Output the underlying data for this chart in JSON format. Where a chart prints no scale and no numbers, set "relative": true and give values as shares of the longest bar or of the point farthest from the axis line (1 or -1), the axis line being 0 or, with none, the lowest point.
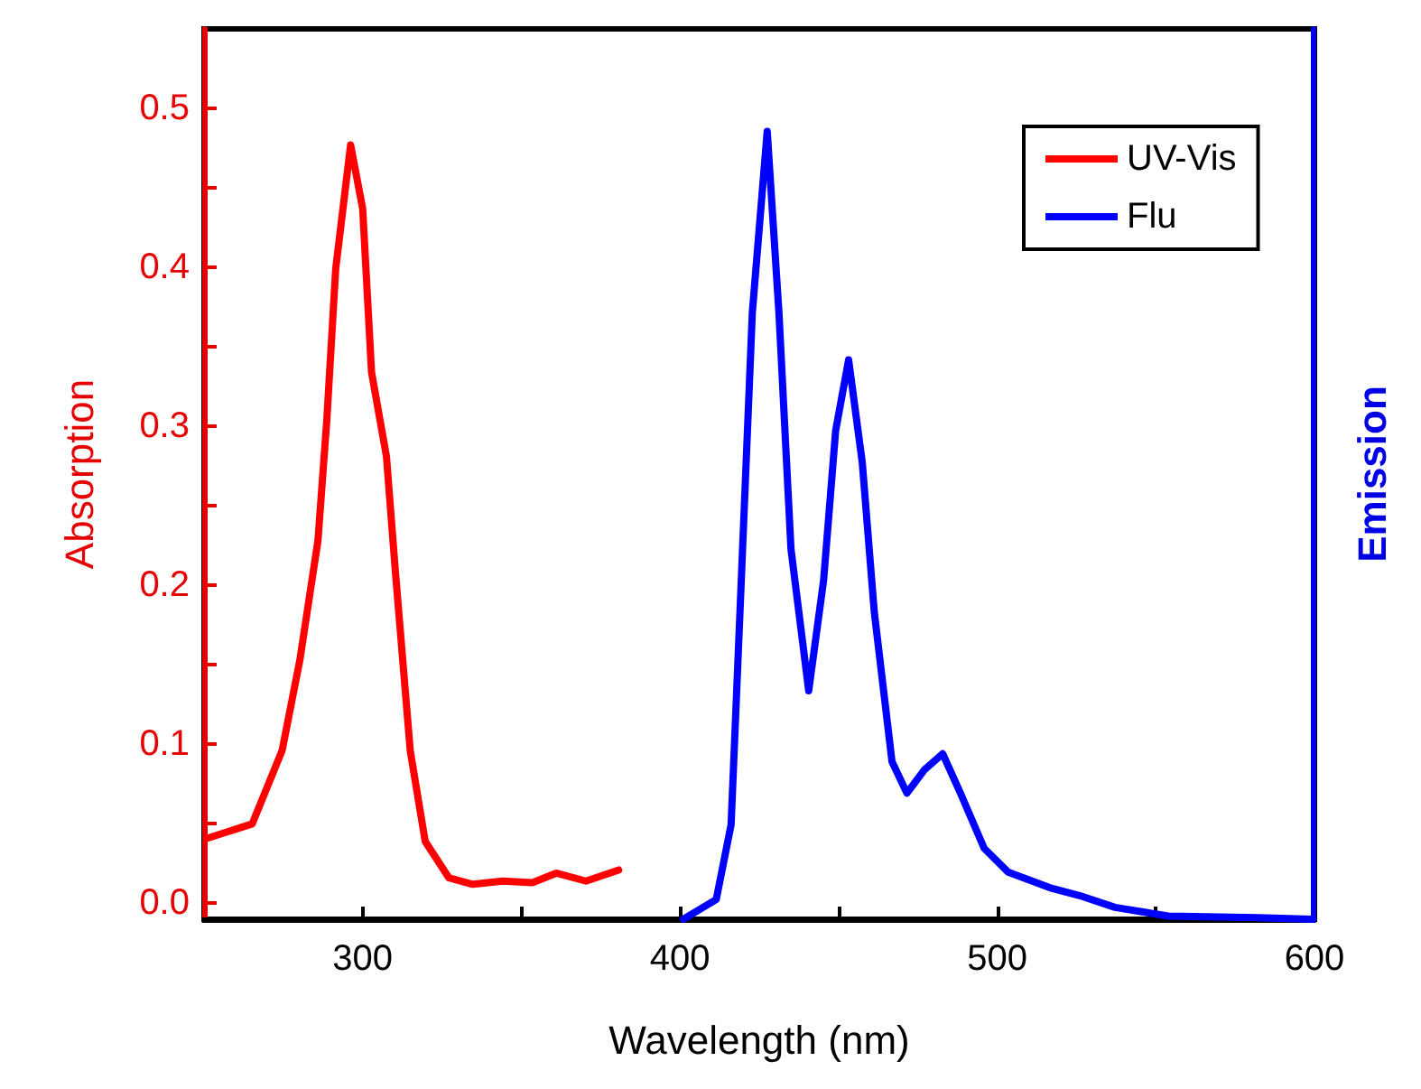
{
  "chart_data": [
    {
      "type": "line",
      "xlabel": "Wavelength (nm)",
      "ylabel": "Absorption",
      "xlim": [
        250,
        600
      ],
      "xticks": [
        300,
        {
          "value": 350,
          "label": null
        },
        400,
        {
          "value": 450,
          "label": null
        },
        500,
        {
          "value": 550,
          "label": null
        },
        600
      ],
      "ylim": [
        -0.01,
        0.55
      ],
      "yticks": [
        "0.0",
        {
          "value": 0.05,
          "label": null
        },
        0.1,
        {
          "value": 0.15,
          "label": null
        },
        0.2,
        {
          "value": 0.25,
          "label": null
        },
        0.3,
        {
          "value": 0.35,
          "label": null
        },
        0.4,
        {
          "value": 0.45,
          "label": null
        },
        0.5
      ],
      "grid": false,
      "legend": "top right",
      "marker": "none",
      "line_style": "solid",
      "series": [
        {
          "name": "UV-Vis",
          "color": "#ff0000",
          "x": [
            251.1,
            265.2,
            274.6,
            280.2,
            285.9,
            288.7,
            291.5,
            296.2,
            300.0,
            302.8,
            307.5,
            310.3,
            315.0,
            319.7,
            327.2,
            334.7,
            344.1,
            353.5,
            361.0,
            370.4,
            380.7
          ],
          "values": [
            0.041,
            0.05,
            0.096,
            0.153,
            0.228,
            0.304,
            0.399,
            0.477,
            0.437,
            0.334,
            0.281,
            0.209,
            0.096,
            0.039,
            0.016,
            0.012,
            0.014,
            0.013,
            0.019,
            0.014,
            0.021
          ]
        }
      ]
    },
    {
      "type": "line",
      "relative": true,
      "y2label": "Emission",
      "xlim": [
        250,
        600
      ],
      "grid": false,
      "legend": "top right",
      "marker": "none",
      "line_style": "solid",
      "series": [
        {
          "name": "Flu",
          "color": "#0000ff",
          "axis": "y2",
          "x": [
            401.3,
            411.7,
            416.4,
            419.2,
            423.1,
            427.8,
            431.5,
            435.3,
            440.9,
            445.6,
            449.4,
            453.5,
            457.8,
            461.6,
            467.2,
            471.9,
            477.5,
            483.2,
            488.8,
            496.3,
            503.8,
            517.0,
            526.4,
            537.6,
            554.4,
            582.6,
            600.0
          ],
          "values": [
            0.0,
            0.025,
            0.12,
            0.39,
            0.77,
            1.0,
            0.77,
            0.47,
            0.29,
            0.43,
            0.62,
            0.71,
            0.58,
            0.39,
            0.2,
            0.16,
            0.19,
            0.21,
            0.16,
            0.09,
            0.06,
            0.04,
            0.03,
            0.015,
            0.004,
            0.002,
            0.0
          ]
        }
      ]
    }
  ]
}
